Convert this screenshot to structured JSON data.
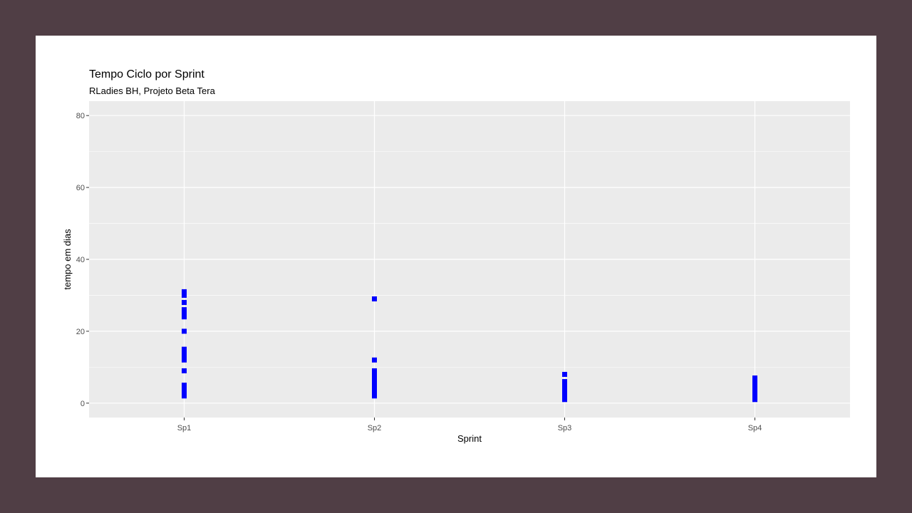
{
  "chart_data": {
    "type": "scatter",
    "title": "Tempo Ciclo por Sprint",
    "subtitle": "RLadies BH, Projeto Beta Tera",
    "xlabel": "Sprint",
    "ylabel": "tempo em dias",
    "categories": [
      "Sp1",
      "Sp2",
      "Sp3",
      "Sp4"
    ],
    "ylim": [
      -4,
      84
    ],
    "yticks": [
      0,
      20,
      40,
      60,
      80
    ],
    "grid": true,
    "legend": "none",
    "series": [
      {
        "color": "#0000ff",
        "points": [
          {
            "x": "Sp1",
            "y": 2
          },
          {
            "x": "Sp1",
            "y": 3
          },
          {
            "x": "Sp1",
            "y": 4
          },
          {
            "x": "Sp1",
            "y": 5
          },
          {
            "x": "Sp1",
            "y": 9
          },
          {
            "x": "Sp1",
            "y": 12
          },
          {
            "x": "Sp1",
            "y": 13
          },
          {
            "x": "Sp1",
            "y": 14
          },
          {
            "x": "Sp1",
            "y": 15
          },
          {
            "x": "Sp1",
            "y": 20
          },
          {
            "x": "Sp1",
            "y": 24
          },
          {
            "x": "Sp1",
            "y": 25
          },
          {
            "x": "Sp1",
            "y": 26
          },
          {
            "x": "Sp1",
            "y": 28
          },
          {
            "x": "Sp1",
            "y": 30
          },
          {
            "x": "Sp1",
            "y": 31
          },
          {
            "x": "Sp2",
            "y": 2
          },
          {
            "x": "Sp2",
            "y": 3
          },
          {
            "x": "Sp2",
            "y": 4
          },
          {
            "x": "Sp2",
            "y": 5
          },
          {
            "x": "Sp2",
            "y": 6
          },
          {
            "x": "Sp2",
            "y": 7
          },
          {
            "x": "Sp2",
            "y": 8
          },
          {
            "x": "Sp2",
            "y": 9
          },
          {
            "x": "Sp2",
            "y": 12
          },
          {
            "x": "Sp2",
            "y": 29
          },
          {
            "x": "Sp3",
            "y": 1
          },
          {
            "x": "Sp3",
            "y": 2
          },
          {
            "x": "Sp3",
            "y": 3
          },
          {
            "x": "Sp3",
            "y": 4
          },
          {
            "x": "Sp3",
            "y": 5
          },
          {
            "x": "Sp3",
            "y": 6
          },
          {
            "x": "Sp3",
            "y": 8
          },
          {
            "x": "Sp4",
            "y": 1
          },
          {
            "x": "Sp4",
            "y": 2
          },
          {
            "x": "Sp4",
            "y": 3
          },
          {
            "x": "Sp4",
            "y": 4
          },
          {
            "x": "Sp4",
            "y": 5
          },
          {
            "x": "Sp4",
            "y": 6
          },
          {
            "x": "Sp4",
            "y": 7
          }
        ]
      }
    ]
  },
  "colors": {
    "background": "#503e45",
    "slide": "#ffffff",
    "panel": "#ebebeb",
    "grid": "#ffffff",
    "point": "#0000ff"
  }
}
